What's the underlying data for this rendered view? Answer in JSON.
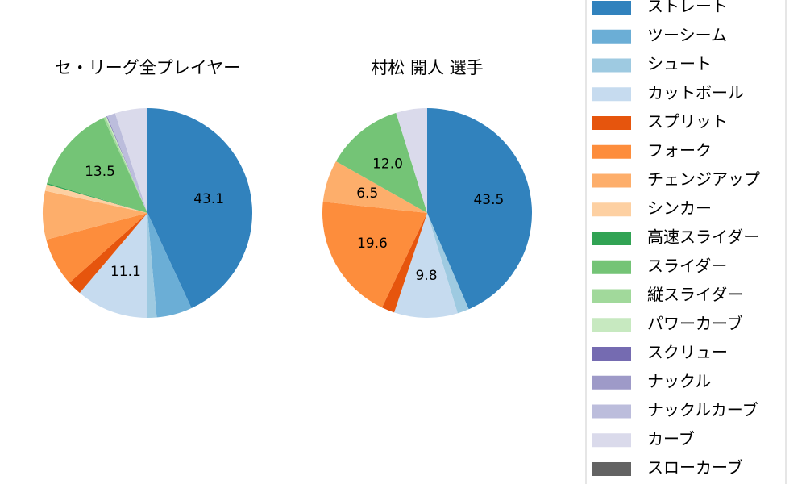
{
  "chart_data": [
    {
      "type": "pie",
      "title": "セ・リーグ全プレイヤー",
      "categories": [
        "ストレート",
        "ツーシーム",
        "シュート",
        "カットボール",
        "スプリット",
        "フォーク",
        "チェンジアップ",
        "シンカー",
        "高速スライダー",
        "スライダー",
        "縦スライダー",
        "パワーカーブ",
        "スクリュー",
        "ナックル",
        "ナックルカーブ",
        "カーブ",
        "スローカーブ"
      ],
      "values": [
        43.1,
        5.5,
        1.5,
        11.1,
        2.2,
        7.5,
        7.5,
        1.0,
        0.2,
        13.5,
        0.3,
        0.2,
        0.1,
        0,
        1.3,
        5.0,
        0
      ],
      "value_labels": [
        "43.1",
        null,
        null,
        "11.1",
        null,
        null,
        null,
        null,
        null,
        "13.5",
        null,
        null,
        null,
        null,
        null,
        null,
        null
      ],
      "colors": [
        "#3182bd",
        "#6baed6",
        "#9ecae1",
        "#c6dbef",
        "#e6550d",
        "#fd8d3c",
        "#fdae6b",
        "#fdd0a2",
        "#31a354",
        "#74c476",
        "#a1d99b",
        "#c7e9c0",
        "#756bb1",
        "#9e9ac8",
        "#bcbddc",
        "#dadaeb",
        "#636363"
      ]
    },
    {
      "type": "pie",
      "title": "村松 開人  選手",
      "categories": [
        "ストレート",
        "ツーシーム",
        "シュート",
        "カットボール",
        "スプリット",
        "フォーク",
        "チェンジアップ",
        "シンカー",
        "高速スライダー",
        "スライダー",
        "縦スライダー",
        "パワーカーブ",
        "スクリュー",
        "ナックル",
        "ナックルカーブ",
        "カーブ",
        "スローカーブ"
      ],
      "values": [
        43.5,
        0,
        1.8,
        9.8,
        2.0,
        19.6,
        6.5,
        0,
        0,
        12.0,
        0,
        0,
        0,
        0,
        0,
        4.8,
        0
      ],
      "value_labels": [
        "43.5",
        null,
        null,
        "9.8",
        null,
        "19.6",
        "6.5",
        null,
        null,
        "12.0",
        null,
        null,
        null,
        null,
        null,
        null,
        null
      ],
      "colors": [
        "#3182bd",
        "#6baed6",
        "#9ecae1",
        "#c6dbef",
        "#e6550d",
        "#fd8d3c",
        "#fdae6b",
        "#fdd0a2",
        "#31a354",
        "#74c476",
        "#a1d99b",
        "#c7e9c0",
        "#756bb1",
        "#9e9ac8",
        "#bcbddc",
        "#dadaeb",
        "#636363"
      ]
    }
  ]
}
